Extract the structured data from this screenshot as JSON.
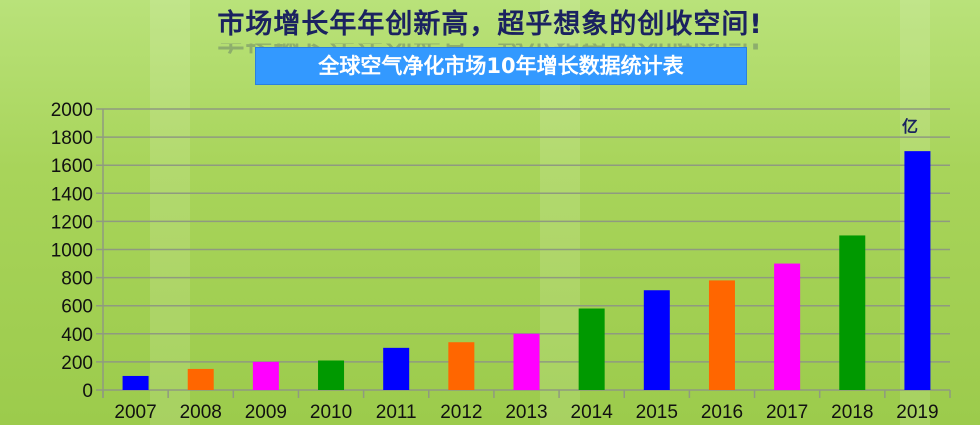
{
  "header": {
    "title": "市场增长年年创新高，超乎想象的创收空间!",
    "subtitle": "全球空气净化市场10年增长数据统计表"
  },
  "chart_data": {
    "type": "bar",
    "title": "全球空气净化市场10年增长数据统计表",
    "categories": [
      "2007",
      "2008",
      "2009",
      "2010",
      "2011",
      "2012",
      "2013",
      "2014",
      "2015",
      "2016",
      "2017",
      "2018",
      "2019"
    ],
    "values": [
      100,
      150,
      200,
      210,
      300,
      340,
      400,
      580,
      710,
      780,
      900,
      1100,
      1700
    ],
    "bar_colors": [
      "#0000ff",
      "#ff6600",
      "#ff00ff",
      "#009900",
      "#0000ff",
      "#ff6600",
      "#ff00ff",
      "#009900",
      "#0000ff",
      "#ff6600",
      "#ff00ff",
      "#009900",
      "#0000ff"
    ],
    "unit_label": "亿",
    "ylim": [
      0,
      2000
    ],
    "yticks": [
      0,
      200,
      400,
      600,
      800,
      1000,
      1200,
      1400,
      1600,
      1800,
      2000
    ],
    "grid": true,
    "xlabel": "",
    "ylabel": ""
  }
}
